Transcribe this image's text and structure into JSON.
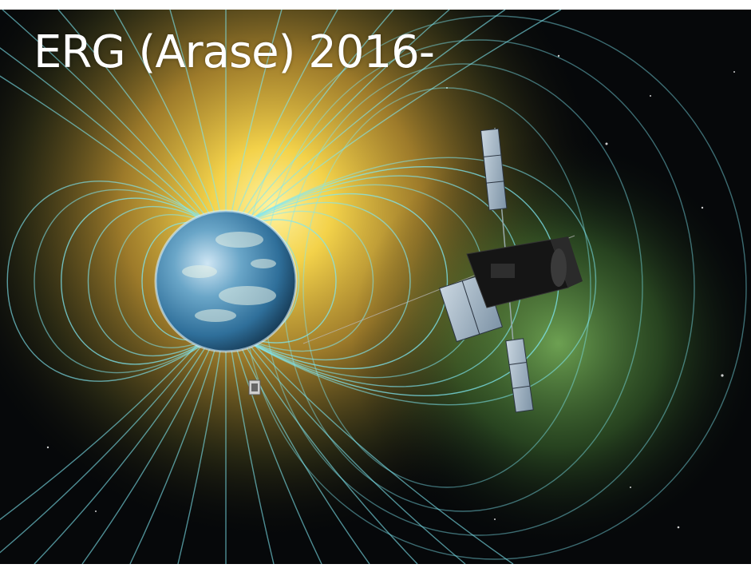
{
  "title": "ERG (Arase) 2016-",
  "scene": {
    "subjects": [
      "earth",
      "magnetic-field-lines",
      "erg-satellite",
      "small-satellite"
    ],
    "colors": {
      "space": "#06080a",
      "glow_core": "#f3d24a",
      "glow_mid": "#c8a23a",
      "aurora_green": "#6fbf6a",
      "field_line": "#7fe7f2",
      "ocean": "#2f6f9a",
      "satellite_body": "#151515",
      "solar_panel": "#9fb3c4"
    }
  }
}
